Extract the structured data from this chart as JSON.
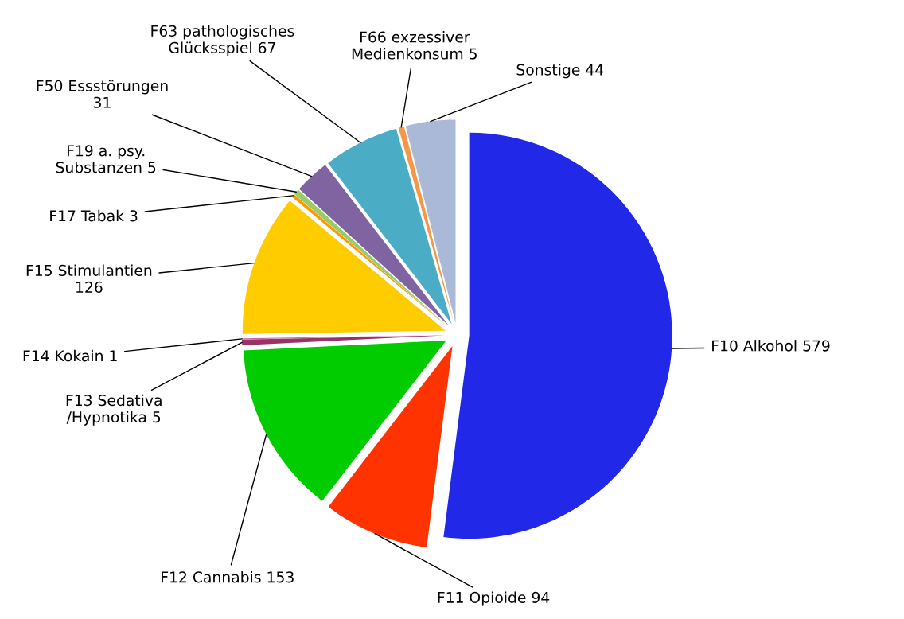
{
  "chart_data": {
    "type": "pie",
    "categories": [
      "F10 Alkohol 579",
      "F11 Opioide 94",
      "F12 Cannabis 153",
      "F13 Sedativa\n/Hypnotika 5",
      "F14 Kokain 1",
      "F15 Stimulantien\n126",
      "F17 Tabak 3",
      "F19 a. psy.\nSubstanzen 5",
      "F50 Essstörungen\n31",
      "F63 pathologisches\nGlücksspiel 67",
      "F66 exzessiver\nMedienkonsum 5",
      "Sonstige 44"
    ],
    "values": [
      579,
      94,
      153,
      5,
      1,
      126,
      3,
      5,
      31,
      67,
      5,
      44
    ],
    "colors": [
      "#2228e8",
      "#ff3300",
      "#00cc00",
      "#993366",
      "#cc6699",
      "#ffcc00",
      "#ff9900",
      "#99cc66",
      "#8064a2",
      "#4bacc6",
      "#f79646",
      "#a9b9d7"
    ]
  }
}
